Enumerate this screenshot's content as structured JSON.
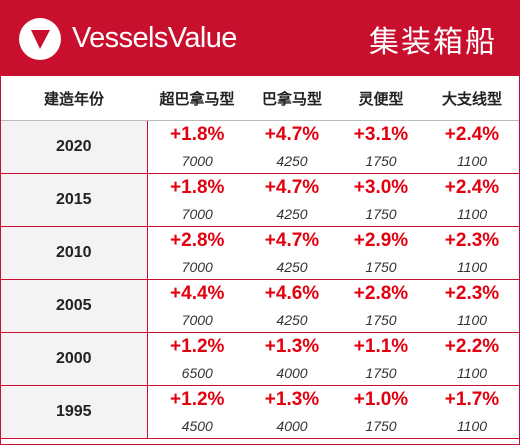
{
  "header": {
    "brand": "VesselsValue",
    "title": "集装箱船",
    "brand_color": "#c8102e",
    "logo_icon": "vesselsvalue-logo-icon"
  },
  "table": {
    "columns": [
      "建造年份",
      "超巴拿马型",
      "巴拿马型",
      "灵便型",
      "大支线型"
    ],
    "rows": [
      {
        "year": "2020",
        "cells": [
          {
            "pct": "+1.8%",
            "size": "7000"
          },
          {
            "pct": "+4.7%",
            "size": "4250"
          },
          {
            "pct": "+3.1%",
            "size": "1750"
          },
          {
            "pct": "+2.4%",
            "size": "1100"
          }
        ]
      },
      {
        "year": "2015",
        "cells": [
          {
            "pct": "+1.8%",
            "size": "7000"
          },
          {
            "pct": "+4.7%",
            "size": "4250"
          },
          {
            "pct": "+3.0%",
            "size": "1750"
          },
          {
            "pct": "+2.4%",
            "size": "1100"
          }
        ]
      },
      {
        "year": "2010",
        "cells": [
          {
            "pct": "+2.8%",
            "size": "7000"
          },
          {
            "pct": "+4.7%",
            "size": "4250"
          },
          {
            "pct": "+2.9%",
            "size": "1750"
          },
          {
            "pct": "+2.3%",
            "size": "1100"
          }
        ]
      },
      {
        "year": "2005",
        "cells": [
          {
            "pct": "+4.4%",
            "size": "7000"
          },
          {
            "pct": "+4.6%",
            "size": "4250"
          },
          {
            "pct": "+2.8%",
            "size": "1750"
          },
          {
            "pct": "+2.3%",
            "size": "1100"
          }
        ]
      },
      {
        "year": "2000",
        "cells": [
          {
            "pct": "+1.2%",
            "size": "6500"
          },
          {
            "pct": "+1.3%",
            "size": "4000"
          },
          {
            "pct": "+1.1%",
            "size": "1750"
          },
          {
            "pct": "+2.2%",
            "size": "1100"
          }
        ]
      },
      {
        "year": "1995",
        "cells": [
          {
            "pct": "+1.2%",
            "size": "4500"
          },
          {
            "pct": "+1.3%",
            "size": "4000"
          },
          {
            "pct": "+1.0%",
            "size": "1750"
          },
          {
            "pct": "+1.7%",
            "size": "1100"
          }
        ]
      }
    ],
    "pct_color": "#e3000f"
  }
}
